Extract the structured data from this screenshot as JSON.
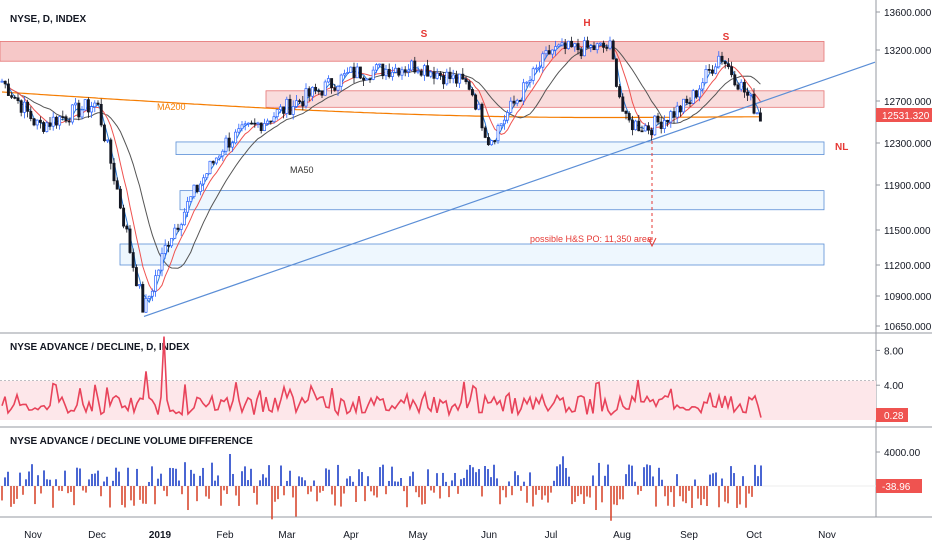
{
  "panels": {
    "main": {
      "title": "NYSE, D, INDEX"
    },
    "ad": {
      "title": "NYSE ADVANCE / DECLINE, D, INDEX"
    },
    "vol": {
      "title": "NYSE ADVANCE / DECLINE VOLUME DIFFERENCE"
    }
  },
  "colors": {
    "up": "#2962ff",
    "down": "#131722",
    "vol_up": "#1e40c8",
    "vol_down": "#d84a32",
    "ad_line": "#e8435a",
    "ad_high": "#26a69a",
    "ma20": "#2a7ad8",
    "ma_red": "#ef5350",
    "ma50": "#555555",
    "ma200": "#f57c00",
    "zone_red": "#ef9a9a",
    "zone_blue": "#90caf9",
    "trend": "#5b8ed6",
    "label_red": "#e53935",
    "last_tag": "#ef5350"
  },
  "chart_data": [
    {
      "type": "candlestick",
      "title": "NYSE, D, INDEX",
      "x_tick_labels": [
        "Nov",
        "Dec",
        "2019",
        "Feb",
        "Mar",
        "Apr",
        "May",
        "Jun",
        "Jul",
        "Aug",
        "Sep",
        "Oct",
        "Nov"
      ],
      "y_tick_labels": [
        "13600.000",
        "13200.000",
        "12700.000",
        "12300.000",
        "11900.000",
        "11500.000",
        "11200.000",
        "10900.000",
        "10650.000"
      ],
      "ylim": [
        10650,
        13600
      ],
      "last_value": "12531.320",
      "annotations": {
        "shoulder_left": "S",
        "head": "H",
        "shoulder_right": "S",
        "neckline": "NL",
        "ma200": "MA200",
        "ma50": "MA50",
        "target": "possible H&S PO: 11,350 area"
      },
      "resistance_zones": [
        [
          13090,
          13290
        ],
        [
          12640,
          12800
        ]
      ],
      "support_zones": [
        [
          12190,
          12310
        ],
        [
          11680,
          11850
        ],
        [
          11200,
          11380
        ]
      ],
      "trendline": {
        "from": [
          "Dec 24",
          10730
        ],
        "to": [
          "Nov 15",
          13080
        ]
      },
      "x": [
        "Oct 2018",
        "Nov 2018",
        "Dec 2018",
        "Dec 24 2018",
        "Jan 2019",
        "Feb 2019",
        "Mar 2019",
        "Apr 2019",
        "May 2019",
        "Jun 2019",
        "Jul 2019",
        "Aug 2019",
        "Sep 2019",
        "Oct 2019"
      ],
      "series": [
        {
          "values": [
            12950,
            12600,
            12250,
            10750,
            11650,
            12300,
            12550,
            12850,
            12980,
            12300,
            13200,
            12600,
            13180,
            12531
          ]
        }
      ]
    },
    {
      "type": "line",
      "title": "NYSE ADVANCE / DECLINE, D, INDEX",
      "y_tick_labels": [
        "8.00",
        "4.00"
      ],
      "ylim": [
        0,
        10
      ],
      "last_value": "0.28",
      "reference_level": 4.5
    },
    {
      "type": "bar",
      "title": "NYSE ADVANCE / DECLINE VOLUME DIFFERENCE",
      "y_tick_labels": [
        "4000.00"
      ],
      "last_value": "-38.96"
    }
  ]
}
